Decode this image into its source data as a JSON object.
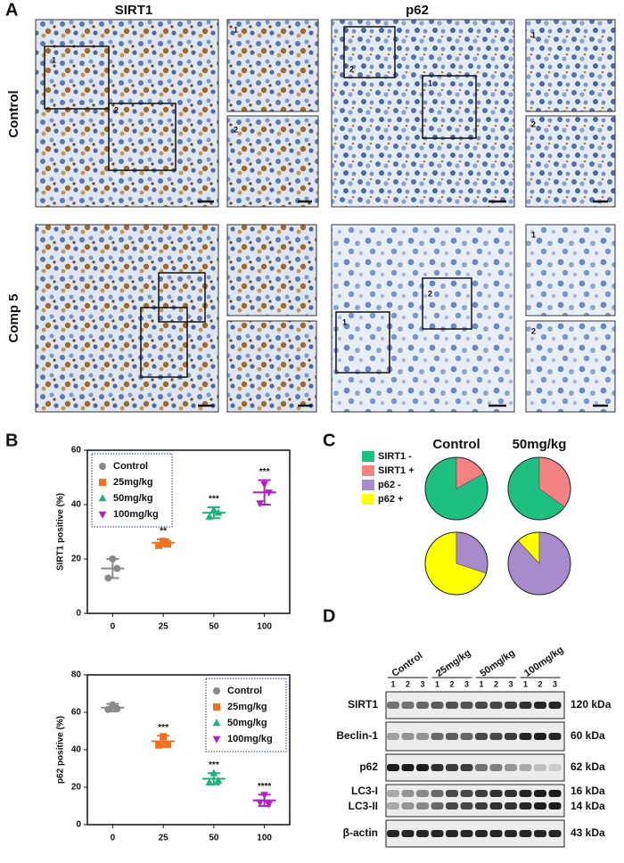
{
  "panel_a": {
    "label": "A",
    "columns": [
      "SIRT1",
      "p62"
    ],
    "rows": [
      "Control",
      "Comp 5"
    ],
    "inset_labels": [
      "1",
      "2"
    ]
  },
  "panel_b": {
    "label": "B"
  },
  "panel_c": {
    "label": "C",
    "legend": [
      {
        "name": "SIRT1 -",
        "color": "#1ec081"
      },
      {
        "name": "SIRT1 +",
        "color": "#f58282"
      },
      {
        "name": "p62    -",
        "color": "#a78bcc"
      },
      {
        "name": "p62    +",
        "color": "#ffff00"
      }
    ]
  },
  "panel_d": {
    "label": "D",
    "groups": [
      "Control",
      "25mg/kg",
      "50mg/kg",
      "100mg/kg"
    ],
    "lanes": [
      "1",
      "2",
      "3"
    ],
    "proteins": [
      "SIRT1",
      "Beclin-1",
      "p62",
      "LC3-I",
      "LC3-II",
      "β-actin"
    ],
    "sizes": [
      "120 kDa",
      "60 kDa",
      "62 kDa",
      "16 kDa",
      "14 kDa",
      "43 kDa"
    ]
  },
  "chart_data": [
    {
      "type": "scatter",
      "ylabel": "SIRT1  positive (%)",
      "categories": [
        "0",
        "25",
        "50",
        "100"
      ],
      "ylim": [
        0,
        60
      ],
      "yticks": [
        0,
        20,
        40,
        60
      ],
      "legend_position": "upper left",
      "series": [
        {
          "name": "Control",
          "color": "#8a8a8a",
          "marker": "circle",
          "points": [
            20,
            13,
            16.5
          ],
          "mean": 16.5,
          "sd": 3.5
        },
        {
          "name": "25mg/kg",
          "color": "#f07020",
          "marker": "square",
          "points": [
            26.5,
            25,
            25.5
          ],
          "mean": 26,
          "sd": 1.2,
          "annotation": "**"
        },
        {
          "name": "50mg/kg",
          "color": "#1fb27a",
          "marker": "triangle-up",
          "points": [
            38,
            35.5,
            37
          ],
          "mean": 37,
          "sd": 2,
          "annotation": "***"
        },
        {
          "name": "100mg/kg",
          "color": "#b21fc4",
          "marker": "triangle-down",
          "points": [
            47.5,
            40.5,
            44.5
          ],
          "mean": 44.5,
          "sd": 4.5,
          "annotation": "***"
        }
      ]
    },
    {
      "type": "scatter",
      "ylabel": "p62  positive (%)",
      "categories": [
        "0",
        "25",
        "50",
        "100"
      ],
      "ylim": [
        0,
        80
      ],
      "yticks": [
        0,
        20,
        40,
        60,
        80
      ],
      "legend_position": "upper right",
      "series": [
        {
          "name": "Control",
          "color": "#8a8a8a",
          "marker": "circle",
          "points": [
            64,
            61.5,
            62
          ],
          "mean": 62.5,
          "sd": 2
        },
        {
          "name": "25mg/kg",
          "color": "#f07020",
          "marker": "square",
          "points": [
            47,
            42.5,
            43
          ],
          "mean": 44.5,
          "sd": 3,
          "annotation": "***"
        },
        {
          "name": "50mg/kg",
          "color": "#1fb27a",
          "marker": "triangle-up",
          "points": [
            27.5,
            22.5,
            23.5
          ],
          "mean": 24.5,
          "sd": 3,
          "annotation": "***"
        },
        {
          "name": "100mg/kg",
          "color": "#b21fc4",
          "marker": "triangle-down",
          "points": [
            16,
            12,
            11
          ],
          "mean": 13,
          "sd": 3,
          "annotation": "****"
        }
      ]
    },
    {
      "type": "pie",
      "title": "Control",
      "values": [
        83,
        17
      ],
      "colors": [
        "#1ec081",
        "#f58282"
      ],
      "start_angle": 90,
      "counterclock": true
    },
    {
      "type": "pie",
      "title": "50mg/kg",
      "values": [
        65,
        35
      ],
      "colors": [
        "#1ec081",
        "#f58282"
      ],
      "start_angle": 90,
      "counterclock": true
    },
    {
      "type": "pie",
      "values": [
        70,
        30
      ],
      "colors": [
        "#ffff00",
        "#a78bcc"
      ],
      "start_angle": 90,
      "counterclock": true
    },
    {
      "type": "pie",
      "values": [
        12,
        88
      ],
      "colors": [
        "#ffff00",
        "#a78bcc"
      ],
      "start_angle": 90,
      "counterclock": true
    }
  ]
}
